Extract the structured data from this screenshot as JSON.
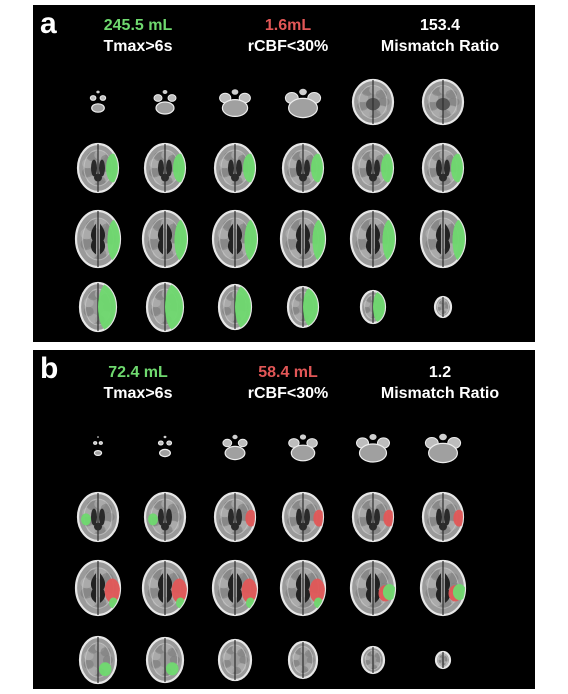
{
  "panels": [
    {
      "letter": "a",
      "tmax_value": "245.5 mL",
      "tmax_label": "Tmax>6s",
      "rcbf_value": "1.6mL",
      "rcbf_label": "rCBF<30%",
      "ratio_value": "153.4",
      "ratio_label": "Mismatch Ratio",
      "colors": {
        "tmax": "#6fd96f",
        "rcbf": "#e25757"
      }
    },
    {
      "letter": "b",
      "tmax_value": "72.4 mL",
      "tmax_label": "Tmax>6s",
      "rcbf_value": "58.4 mL",
      "rcbf_label": "rCBF<30%",
      "ratio_value": "1.2",
      "ratio_label": "Mismatch Ratio",
      "colors": {
        "tmax": "#6fd96f",
        "rcbf": "#e25757"
      }
    }
  ]
}
